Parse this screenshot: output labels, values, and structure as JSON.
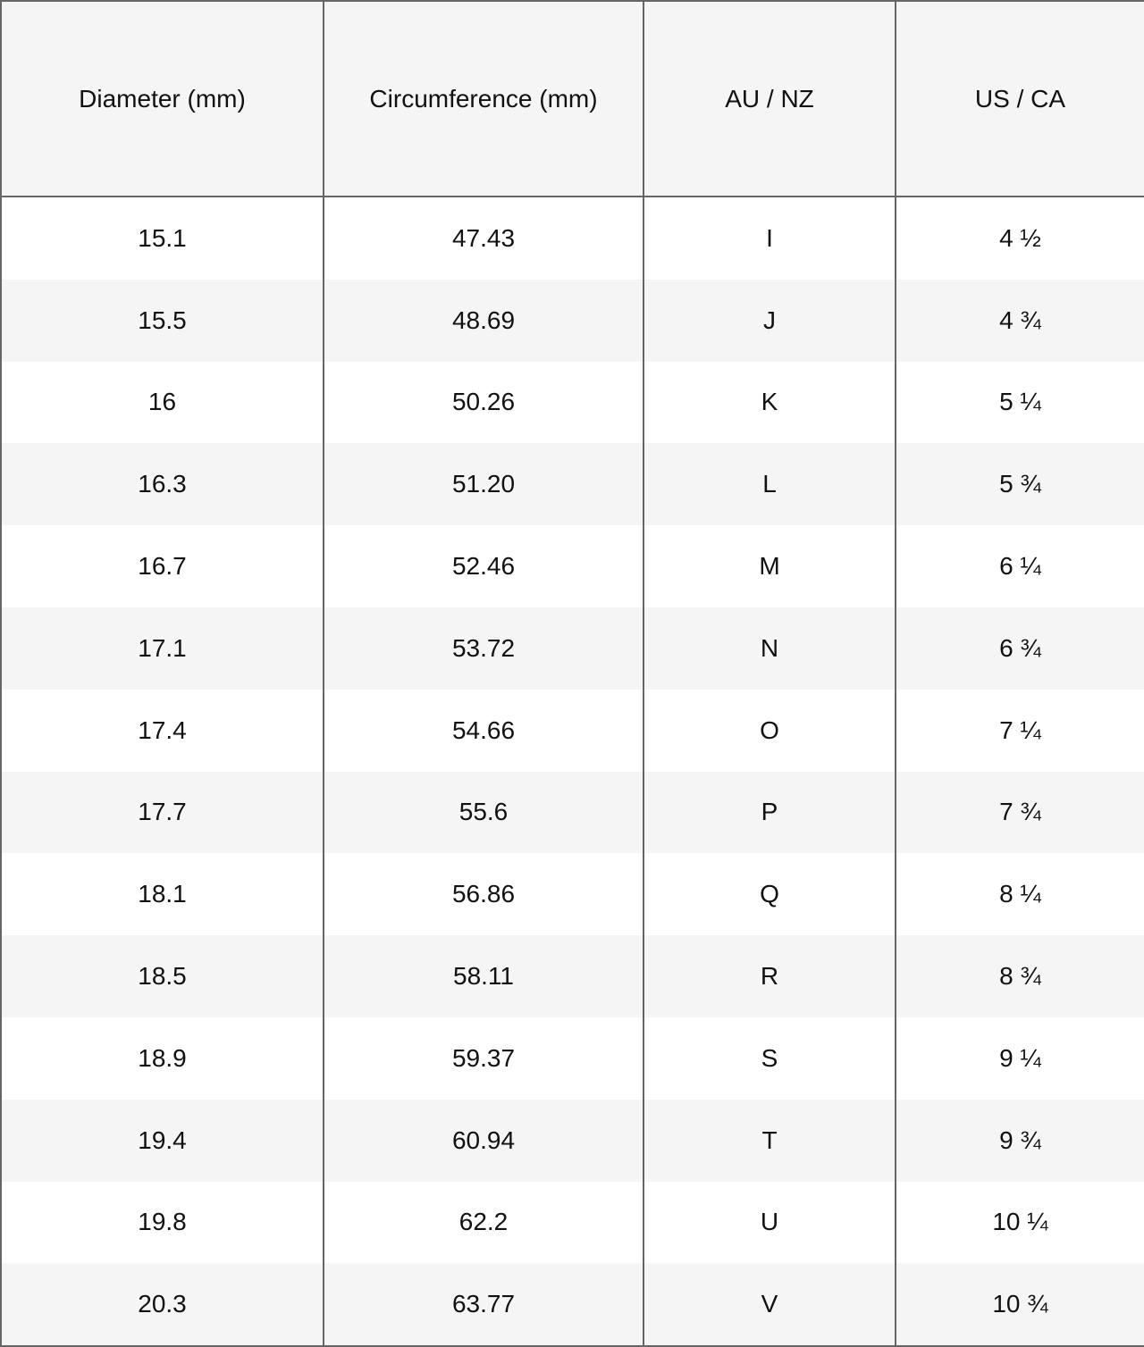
{
  "headers": [
    "Diameter (mm)",
    "Circumference (mm)",
    "AU / NZ",
    "US / CA"
  ],
  "rows": [
    [
      "15.1",
      "47.43",
      "I",
      "4 ½"
    ],
    [
      "15.5",
      "48.69",
      "J",
      "4 ¾"
    ],
    [
      "16",
      "50.26",
      "K",
      "5 ¼"
    ],
    [
      "16.3",
      "51.20",
      "L",
      "5 ¾"
    ],
    [
      "16.7",
      "52.46",
      "M",
      "6 ¼"
    ],
    [
      "17.1",
      "53.72",
      "N",
      "6 ¾"
    ],
    [
      "17.4",
      "54.66",
      "O",
      "7 ¼"
    ],
    [
      "17.7",
      "55.6",
      "P",
      "7 ¾"
    ],
    [
      "18.1",
      "56.86",
      "Q",
      "8 ¼"
    ],
    [
      "18.5",
      "58.11",
      "R",
      "8 ¾"
    ],
    [
      "18.9",
      "59.37",
      "S",
      "9 ¼"
    ],
    [
      "19.4",
      "60.94",
      "T",
      "9 ¾"
    ],
    [
      "19.8",
      "62.2",
      "U",
      "10 ¼"
    ],
    [
      "20.3",
      "63.77",
      "V",
      "10 ¾"
    ]
  ]
}
